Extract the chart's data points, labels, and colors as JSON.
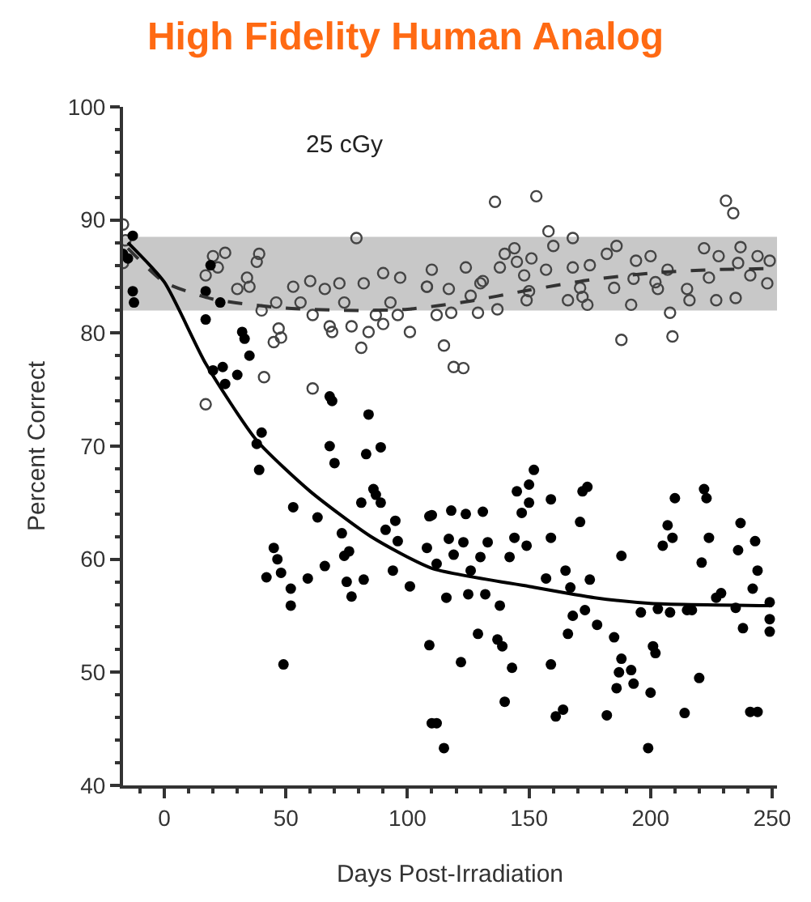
{
  "chart_data": {
    "type": "scatter",
    "title": "High Fidelity Human Analog",
    "xlabel": "Days Post-Irradiation",
    "ylabel": "Percent Correct",
    "annotations": [
      "25 cGy"
    ],
    "xlim": [
      -17,
      252
    ],
    "xticks": [
      0,
      50,
      100,
      150,
      200,
      250
    ],
    "ylim": [
      40,
      100
    ],
    "yticks": [
      40,
      50,
      60,
      70,
      80,
      90,
      100
    ],
    "grid": false,
    "bands": [
      {
        "axis": "y",
        "from": 82,
        "to": 88.5,
        "color": "#c8c8c8"
      }
    ],
    "series": [
      {
        "marker": "circle-open",
        "color": "#444444",
        "x": [
          -17,
          -16,
          -17,
          17,
          20,
          25,
          22,
          17,
          30,
          34,
          35,
          38,
          39,
          40,
          41,
          45,
          47,
          48,
          46,
          53,
          56,
          60,
          66,
          72,
          79,
          61,
          68,
          69,
          74,
          77,
          81,
          82,
          84,
          87,
          90,
          90,
          97,
          93,
          96,
          101,
          61,
          108,
          136,
          153,
          231,
          234,
          158,
          168,
          160,
          144,
          110,
          124,
          108,
          117,
          126,
          131,
          138,
          140,
          145,
          148,
          151,
          157,
          150,
          149,
          166,
          171,
          172,
          174,
          168,
          175,
          182,
          186,
          185,
          192,
          193,
          194,
          200,
          202,
          203,
          207,
          215,
          216,
          222,
          224,
          228,
          236,
          237,
          227,
          235,
          241,
          244,
          249,
          248,
          112,
          118,
          129,
          137,
          115,
          119,
          123,
          188,
          208,
          209,
          130
        ],
        "values": [
          89.6,
          88.2,
          86.2,
          85.1,
          86.8,
          87.1,
          85.8,
          73.7,
          83.9,
          84.9,
          84.1,
          86.3,
          87,
          82,
          76.1,
          79.2,
          80.4,
          79.6,
          82.7,
          84.1,
          82.7,
          84.6,
          83.9,
          84.4,
          88.4,
          81.6,
          80.6,
          80.1,
          82.7,
          80.6,
          78.7,
          84.4,
          80.1,
          81.6,
          80.8,
          85.3,
          84.9,
          82.7,
          81.6,
          80.1,
          75.1,
          84.1,
          91.6,
          92.1,
          91.7,
          90.6,
          89,
          88.4,
          87.7,
          87.5,
          85.6,
          85.8,
          84.1,
          83.9,
          83.3,
          84.6,
          85.8,
          87,
          86.3,
          85.1,
          86.6,
          85.6,
          83.7,
          82.9,
          82.9,
          84,
          83.2,
          82.5,
          85.8,
          86,
          87,
          87.7,
          84,
          82.5,
          84.8,
          86.4,
          86.8,
          84.5,
          83.9,
          85.6,
          83.9,
          82.9,
          87.5,
          84.9,
          86.8,
          86.2,
          87.6,
          82.9,
          83.1,
          85.1,
          86.8,
          86.4,
          84.4,
          81.6,
          81.8,
          81.8,
          82.1,
          78.9,
          77,
          76.9,
          79.4,
          81.8,
          79.7,
          84.4
        ]
      },
      {
        "marker": "circle",
        "color": "#000000",
        "x": [
          -13,
          -17,
          -15,
          -13,
          -12.5,
          17,
          19,
          17,
          23,
          20,
          24,
          25,
          30,
          32,
          33,
          35,
          38,
          40,
          39,
          68,
          69,
          68,
          70,
          84,
          83,
          89,
          86,
          53,
          63,
          45,
          46.5,
          42,
          48,
          52,
          52,
          59,
          66,
          73,
          74,
          76,
          75,
          77,
          81,
          82,
          87,
          89,
          91,
          94,
          95,
          96,
          101,
          109,
          108,
          109,
          49,
          110,
          110,
          112,
          112,
          115,
          116,
          117,
          118,
          119,
          123,
          124,
          125,
          126,
          122,
          129,
          130,
          131,
          132,
          133,
          138,
          137,
          139,
          140,
          142,
          143,
          144,
          149,
          145,
          147,
          150,
          150,
          152,
          157,
          159,
          159,
          159,
          161,
          164,
          165,
          166,
          167,
          168,
          171,
          172,
          174,
          173,
          175,
          178,
          182,
          185,
          188,
          188,
          187,
          186,
          192,
          193,
          196,
          199,
          200,
          201,
          202,
          203,
          205,
          207,
          209,
          208,
          210,
          214,
          215,
          217,
          220,
          221,
          222,
          223,
          224,
          227,
          229,
          235,
          236,
          237,
          238,
          241,
          244,
          242,
          243,
          244,
          249,
          249,
          249
        ],
        "values": [
          88.6,
          87,
          86.6,
          83.7,
          82.7,
          83.7,
          86,
          81.2,
          82.7,
          76.7,
          77,
          75.5,
          76.3,
          80.1,
          79.5,
          78,
          70.2,
          71.2,
          67.9,
          74.4,
          74,
          70,
          68.5,
          72.8,
          69.3,
          69.9,
          66.2,
          64.6,
          63.7,
          61,
          60,
          58.4,
          58.8,
          57.4,
          55.9,
          58.3,
          59.4,
          62.3,
          60.3,
          60.7,
          58,
          56.7,
          65,
          58.2,
          65.7,
          65,
          62.6,
          59,
          63.4,
          61.6,
          57.6,
          63.8,
          61,
          52.4,
          50.7,
          45.5,
          63.9,
          59.6,
          45.5,
          43.3,
          56.6,
          61.8,
          64.3,
          60.4,
          61.5,
          64,
          56.9,
          59,
          50.9,
          53.4,
          60.2,
          64.2,
          56.9,
          61.5,
          55.9,
          52.9,
          52.3,
          47.4,
          60.2,
          50.4,
          61.9,
          61.2,
          66,
          64.1,
          65,
          66.6,
          67.9,
          58.3,
          61.9,
          65.3,
          50.7,
          46.1,
          46.7,
          59,
          53.4,
          57.5,
          55,
          63.3,
          66,
          66.4,
          55.5,
          58.2,
          54.2,
          46.2,
          53.1,
          60.3,
          51.2,
          50,
          48.6,
          50.2,
          49,
          55.3,
          43.3,
          48.2,
          52.3,
          51.7,
          55.6,
          61.2,
          63,
          61.9,
          55.3,
          65.4,
          46.4,
          55.5,
          55.5,
          49.5,
          59.7,
          66.2,
          65.4,
          61.9,
          56.6,
          57,
          55.7,
          60.8,
          63.2,
          53.9,
          46.5,
          46.5,
          57.4,
          61.6,
          59,
          56.2,
          54.7,
          53.6
        ]
      },
      {
        "type": "line",
        "line_style": "dashed",
        "color": "#333333",
        "x": [
          -15,
          0,
          20,
          50,
          80,
          100,
          125,
          150,
          175,
          200,
          225,
          250
        ],
        "values": [
          87.5,
          84.5,
          83,
          82.2,
          82,
          82.1,
          82.8,
          83.8,
          84.7,
          85.3,
          85.6,
          85.7
        ]
      },
      {
        "type": "line",
        "line_style": "solid",
        "color": "#000000",
        "x": [
          -15,
          0,
          17,
          38,
          60,
          85,
          110,
          150,
          177,
          200,
          250
        ],
        "values": [
          88,
          84.5,
          77.3,
          70.5,
          66,
          62,
          59.2,
          57.6,
          56.6,
          56.1,
          55.9
        ]
      }
    ]
  }
}
